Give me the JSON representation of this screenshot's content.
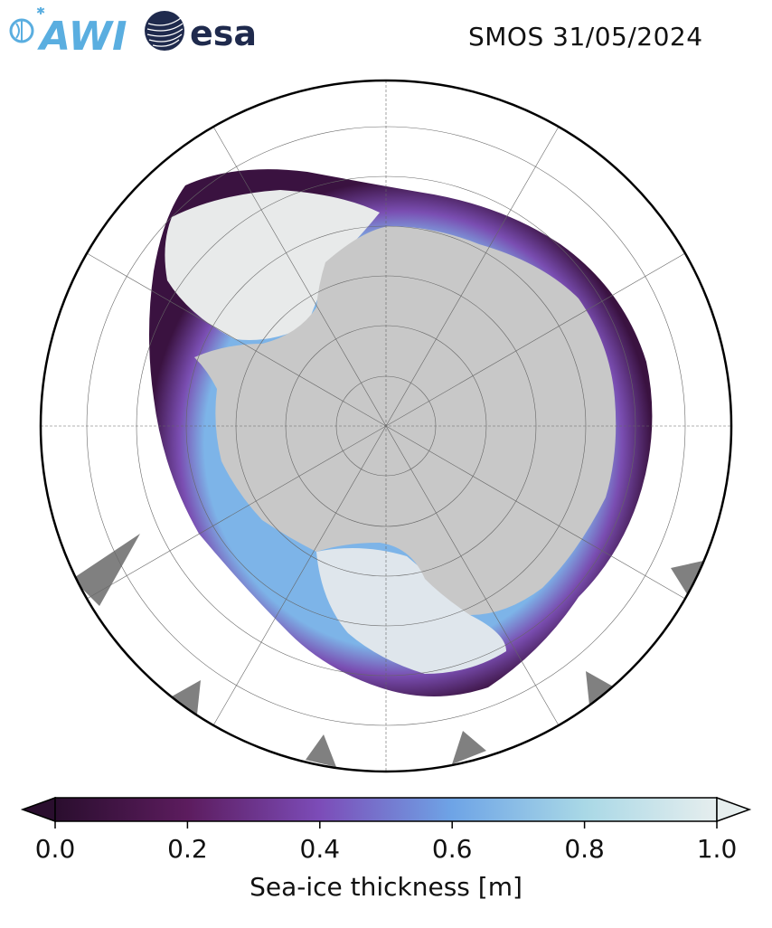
{
  "header": {
    "awi_logo_text": "AWI",
    "esa_logo_text": "esa",
    "title": "SMOS 31/05/2024"
  },
  "map": {
    "projection": "south-polar-stereographic",
    "land_color": "#c8c8c8",
    "ice_shelf_color": "#ebebeb",
    "no_data_color": "#808080",
    "ocean_color": "#ffffff"
  },
  "colorbar": {
    "label": "Sea-ice thickness [m]",
    "ticks": [
      "0.0",
      "0.2",
      "0.4",
      "0.6",
      "0.8",
      "1.0"
    ],
    "tick_values": [
      0.0,
      0.2,
      0.4,
      0.6,
      0.8,
      1.0
    ],
    "range": [
      0.0,
      1.0
    ],
    "extend": "both",
    "colors": [
      "#2a0e2e",
      "#5c1c5e",
      "#7c4cb8",
      "#6ea4e6",
      "#a9d8e6",
      "#e6eeee"
    ]
  }
}
